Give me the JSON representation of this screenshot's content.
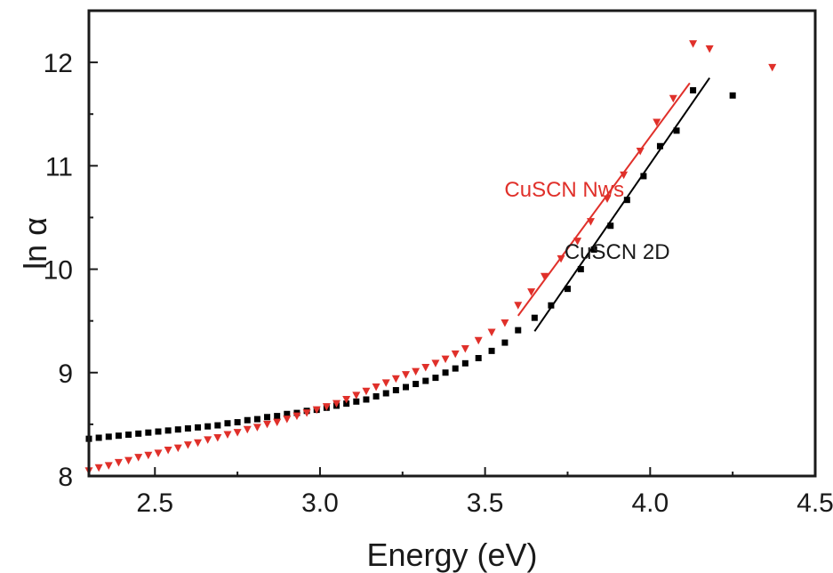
{
  "chart_data": {
    "type": "scatter",
    "xlabel": "Energy (eV)",
    "ylabel": "ln α",
    "xlim": [
      2.3,
      4.5
    ],
    "ylim": [
      8,
      12.5
    ],
    "x_ticks": [
      2.5,
      3.0,
      3.5,
      4.0,
      4.5
    ],
    "x_tick_labels": [
      "2.5",
      "3.0",
      "3.5",
      "4.0",
      "4.5"
    ],
    "y_ticks": [
      8,
      9,
      10,
      11,
      12
    ],
    "y_tick_labels": [
      "8",
      "9",
      "10",
      "11",
      "12"
    ],
    "grid": false,
    "legend": "none",
    "series": [
      {
        "name": "CuSCN 2D",
        "marker": "square",
        "color": "#000000",
        "points": [
          [
            2.3,
            8.36
          ],
          [
            2.33,
            8.37
          ],
          [
            2.36,
            8.38
          ],
          [
            2.39,
            8.39
          ],
          [
            2.42,
            8.4
          ],
          [
            2.45,
            8.41
          ],
          [
            2.48,
            8.42
          ],
          [
            2.51,
            8.43
          ],
          [
            2.54,
            8.44
          ],
          [
            2.57,
            8.45
          ],
          [
            2.6,
            8.46
          ],
          [
            2.63,
            8.47
          ],
          [
            2.66,
            8.48
          ],
          [
            2.69,
            8.49
          ],
          [
            2.72,
            8.51
          ],
          [
            2.75,
            8.52
          ],
          [
            2.78,
            8.54
          ],
          [
            2.81,
            8.55
          ],
          [
            2.84,
            8.57
          ],
          [
            2.87,
            8.58
          ],
          [
            2.9,
            8.6
          ],
          [
            2.93,
            8.61
          ],
          [
            2.96,
            8.63
          ],
          [
            2.99,
            8.64
          ],
          [
            3.02,
            8.66
          ],
          [
            3.05,
            8.68
          ],
          [
            3.08,
            8.7
          ],
          [
            3.11,
            8.72
          ],
          [
            3.14,
            8.74
          ],
          [
            3.17,
            8.77
          ],
          [
            3.2,
            8.8
          ],
          [
            3.23,
            8.83
          ],
          [
            3.26,
            8.86
          ],
          [
            3.29,
            8.89
          ],
          [
            3.32,
            8.92
          ],
          [
            3.35,
            8.95
          ],
          [
            3.38,
            9.0
          ],
          [
            3.41,
            9.04
          ],
          [
            3.44,
            9.09
          ],
          [
            3.48,
            9.14
          ],
          [
            3.52,
            9.21
          ],
          [
            3.56,
            9.29
          ],
          [
            3.6,
            9.41
          ],
          [
            3.65,
            9.53
          ],
          [
            3.7,
            9.65
          ],
          [
            3.75,
            9.81
          ],
          [
            3.79,
            10.0
          ],
          [
            3.83,
            10.19
          ],
          [
            3.88,
            10.42
          ],
          [
            3.93,
            10.67
          ],
          [
            3.98,
            10.9
          ],
          [
            4.03,
            11.19
          ],
          [
            4.08,
            11.34
          ],
          [
            4.13,
            11.73
          ],
          [
            4.25,
            11.68
          ]
        ]
      },
      {
        "name": "CuSCN Nws",
        "marker": "triangle-down",
        "color": "#e0302a",
        "points": [
          [
            2.3,
            8.05
          ],
          [
            2.33,
            8.08
          ],
          [
            2.36,
            8.1
          ],
          [
            2.39,
            8.13
          ],
          [
            2.42,
            8.15
          ],
          [
            2.45,
            8.18
          ],
          [
            2.48,
            8.2
          ],
          [
            2.51,
            8.22
          ],
          [
            2.54,
            8.25
          ],
          [
            2.57,
            8.27
          ],
          [
            2.6,
            8.3
          ],
          [
            2.63,
            8.32
          ],
          [
            2.66,
            8.35
          ],
          [
            2.69,
            8.37
          ],
          [
            2.72,
            8.4
          ],
          [
            2.75,
            8.42
          ],
          [
            2.78,
            8.45
          ],
          [
            2.81,
            8.47
          ],
          [
            2.84,
            8.5
          ],
          [
            2.87,
            8.52
          ],
          [
            2.9,
            8.55
          ],
          [
            2.93,
            8.58
          ],
          [
            2.96,
            8.61
          ],
          [
            2.99,
            8.64
          ],
          [
            3.02,
            8.67
          ],
          [
            3.05,
            8.7
          ],
          [
            3.08,
            8.74
          ],
          [
            3.11,
            8.78
          ],
          [
            3.14,
            8.82
          ],
          [
            3.17,
            8.86
          ],
          [
            3.2,
            8.9
          ],
          [
            3.23,
            8.94
          ],
          [
            3.26,
            8.98
          ],
          [
            3.29,
            9.01
          ],
          [
            3.32,
            9.05
          ],
          [
            3.35,
            9.09
          ],
          [
            3.38,
            9.13
          ],
          [
            3.41,
            9.18
          ],
          [
            3.44,
            9.23
          ],
          [
            3.48,
            9.31
          ],
          [
            3.52,
            9.39
          ],
          [
            3.56,
            9.48
          ],
          [
            3.6,
            9.65
          ],
          [
            3.64,
            9.78
          ],
          [
            3.68,
            9.93
          ],
          [
            3.73,
            10.1
          ],
          [
            3.78,
            10.27
          ],
          [
            3.82,
            10.46
          ],
          [
            3.87,
            10.68
          ],
          [
            3.92,
            10.91
          ],
          [
            3.97,
            11.14
          ],
          [
            4.02,
            11.42
          ],
          [
            4.07,
            11.65
          ],
          [
            4.13,
            12.18
          ],
          [
            4.18,
            12.13
          ],
          [
            4.37,
            11.95
          ]
        ]
      }
    ],
    "fit_lines": [
      {
        "series": "CuSCN 2D",
        "color": "#000000",
        "x": [
          3.65,
          4.18
        ],
        "y": [
          9.4,
          11.85
        ]
      },
      {
        "series": "CuSCN Nws",
        "color": "#e0302a",
        "x": [
          3.6,
          4.12
        ],
        "y": [
          9.55,
          11.8
        ]
      }
    ],
    "annotations": [
      {
        "text": "CuSCN Nws",
        "color": "#e0302a",
        "x": 3.74,
        "y": 10.7
      },
      {
        "text": "CuSCN 2D",
        "color": "#1a1a1a",
        "x": 3.9,
        "y": 10.1
      }
    ]
  }
}
